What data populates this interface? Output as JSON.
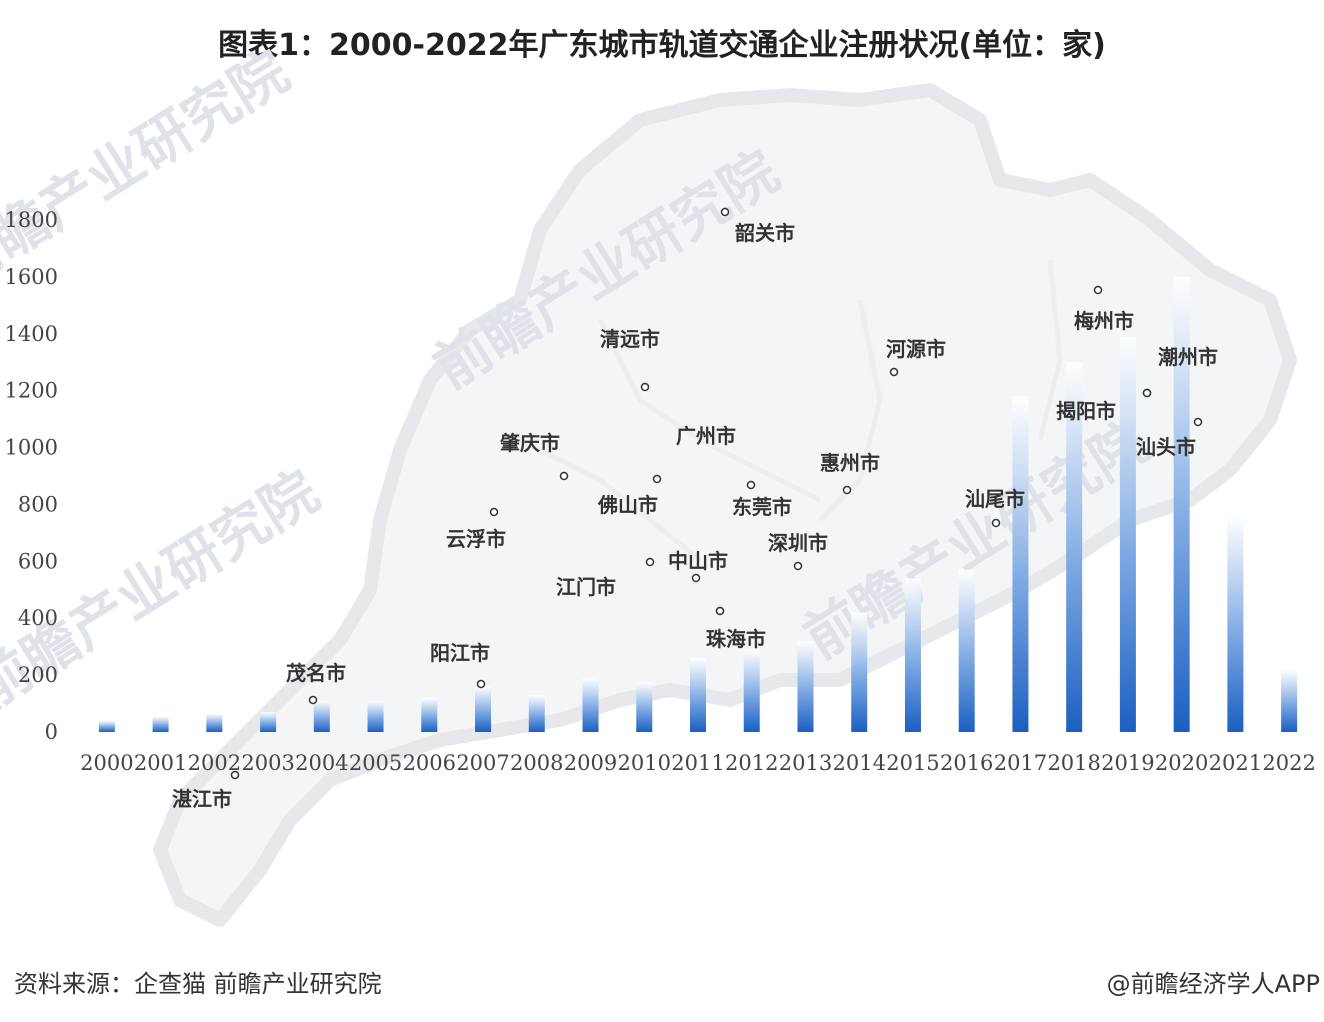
{
  "title": "图表1：2000-2022年广东城市轨道交通企业注册状况(单位：家)",
  "source": "资料来源：企查猫 前瞻产业研究院",
  "credit": "@前瞻经济学人APP",
  "watermark": "前瞻产业研究院",
  "colors": {
    "bar_top": "#ffffff",
    "bar_bottom": "#1b5fc1",
    "map_outline": "#e6e8ec",
    "watermark": "#dfe3e9"
  },
  "chart_data": {
    "type": "bar",
    "categories": [
      "2000",
      "2001",
      "2002",
      "2003",
      "2004",
      "2005",
      "2006",
      "2007",
      "2008",
      "2009",
      "2010",
      "2011",
      "2012",
      "2013",
      "2014",
      "2015",
      "2016",
      "2017",
      "2018",
      "2019",
      "2020",
      "2021",
      "2022"
    ],
    "values": [
      40,
      55,
      65,
      70,
      110,
      110,
      120,
      160,
      130,
      190,
      175,
      260,
      290,
      320,
      420,
      540,
      570,
      1180,
      1300,
      1390,
      1600,
      760,
      220
    ],
    "ylim": [
      0,
      1800
    ],
    "yticks": [
      0,
      200,
      400,
      600,
      800,
      1000,
      1200,
      1400,
      1600,
      1800
    ],
    "grid": false,
    "legend": "none"
  },
  "map_labels": [
    "韶关市",
    "清远市",
    "河源市",
    "梅州市",
    "潮州市",
    "揭阳市",
    "汕头市",
    "肇庆市",
    "广州市",
    "惠州市",
    "佛山市",
    "东莞市",
    "汕尾市",
    "云浮市",
    "深圳市",
    "中山市",
    "江门市",
    "珠海市",
    "茂名市",
    "阳江市",
    "湛江市"
  ]
}
